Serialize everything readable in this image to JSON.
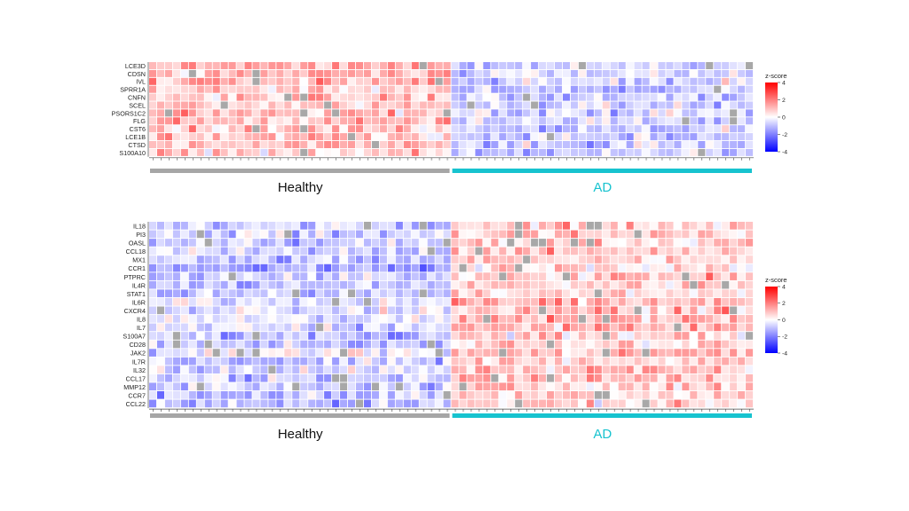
{
  "chart_data": [
    {
      "type": "heatmap",
      "rows": [
        "LCE3D",
        "CDSN",
        "IVL",
        "SPRR1A",
        "CNFN",
        "SCEL",
        "PSORS1C2",
        "FLG",
        "CST6",
        "LCE1B",
        "CTSD",
        "S100A10"
      ],
      "groups": [
        {
          "name": "Healthy",
          "n_samples": 38,
          "color": "#a6a6a6"
        },
        {
          "name": "AD",
          "n_samples": 38,
          "color": "#17c3cf"
        }
      ],
      "legend": {
        "title": "z-score",
        "ticks": [
          4,
          2,
          0,
          -2,
          -4
        ],
        "range": [
          -4,
          4
        ],
        "colors": {
          "low": "#0000ff",
          "mid": "#ffffff",
          "high": "#ff0000",
          "missing": "#a8a8a8"
        }
      },
      "pattern": [
        {
          "group": "Healthy",
          "z": 1.1,
          "note": "mostly red"
        },
        {
          "group": "AD",
          "z": -1.0,
          "note": "mostly blue"
        }
      ]
    },
    {
      "type": "heatmap",
      "rows": [
        "IL18",
        "PI3",
        "OASL",
        "CCL18",
        "MX1",
        "CCR1",
        "PTPRC",
        "IL4R",
        "STAT1",
        "IL6R",
        "CXCR4",
        "IL8",
        "IL7",
        "S100A7",
        "CD28",
        "JAK2",
        "IL7R",
        "IL32",
        "CCL17",
        "MMP12",
        "CCR7",
        "CCL22"
      ],
      "groups": [
        {
          "name": "Healthy",
          "n_samples": 38,
          "color": "#a6a6a6"
        },
        {
          "name": "AD",
          "n_samples": 38,
          "color": "#17c3cf"
        }
      ],
      "legend": {
        "title": "z-score",
        "ticks": [
          4,
          2,
          0,
          -2,
          -4
        ],
        "range": [
          -4,
          4
        ],
        "colors": {
          "low": "#0000ff",
          "mid": "#ffffff",
          "high": "#ff0000",
          "missing": "#a8a8a8"
        }
      },
      "pattern": [
        {
          "group": "Healthy",
          "z": -0.9,
          "note": "mostly blue"
        },
        {
          "group": "AD",
          "z": 1.0,
          "note": "mostly red"
        }
      ]
    }
  ]
}
